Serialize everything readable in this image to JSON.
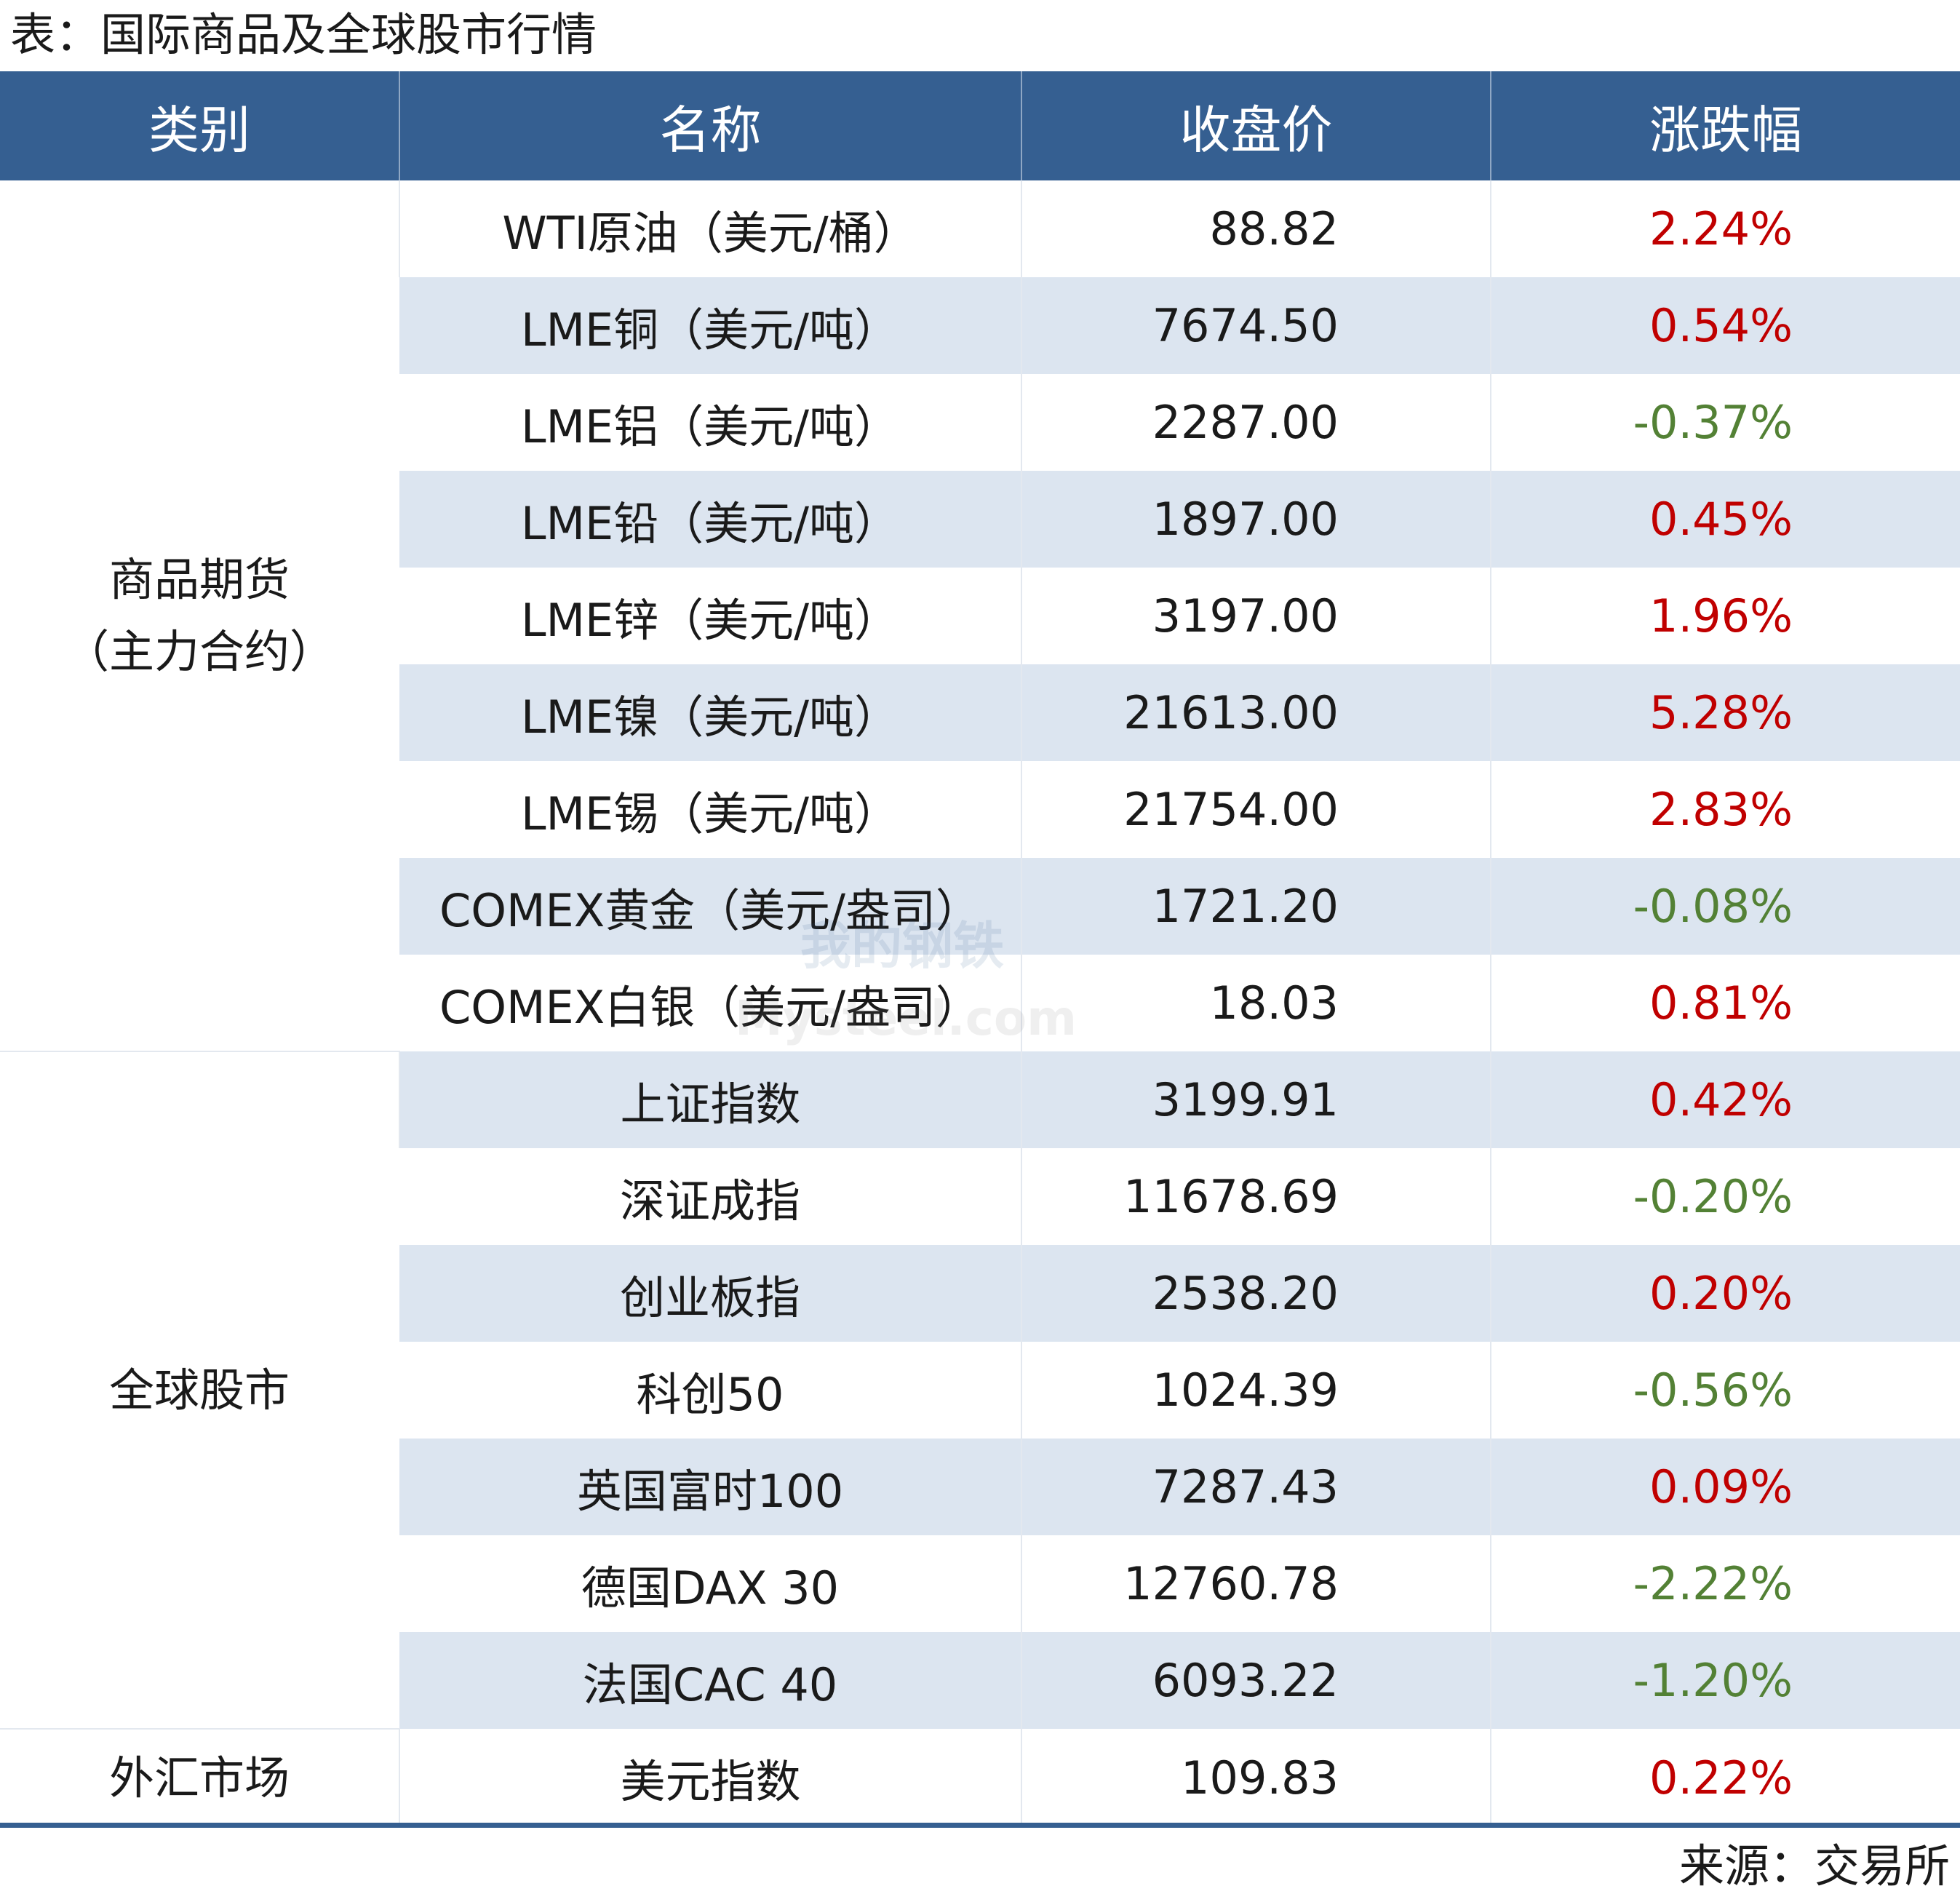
{
  "title": "表：国际商品及全球股市行情",
  "headers": {
    "category": "类别",
    "name": "名称",
    "close": "收盘价",
    "change": "涨跌幅"
  },
  "categories": {
    "commodities_line1": "商品期货",
    "commodities_line2": "（主力合约）",
    "stocks": "全球股市",
    "fx": "外汇市场"
  },
  "rows": [
    {
      "name": "WTI原油（美元/桶）",
      "close": "88.82",
      "change": "2.24%",
      "direction": "up"
    },
    {
      "name": "LME铜（美元/吨）",
      "close": "7674.50",
      "change": "0.54%",
      "direction": "up"
    },
    {
      "name": "LME铝（美元/吨）",
      "close": "2287.00",
      "change": "-0.37%",
      "direction": "down"
    },
    {
      "name": "LME铅（美元/吨）",
      "close": "1897.00",
      "change": "0.45%",
      "direction": "up"
    },
    {
      "name": "LME锌（美元/吨）",
      "close": "3197.00",
      "change": "1.96%",
      "direction": "up"
    },
    {
      "name": "LME镍（美元/吨）",
      "close": "21613.00",
      "change": "5.28%",
      "direction": "up"
    },
    {
      "name": "LME锡（美元/吨）",
      "close": "21754.00",
      "change": "2.83%",
      "direction": "up"
    },
    {
      "name": "COMEX黄金（美元/盎司）",
      "close": "1721.20",
      "change": "-0.08%",
      "direction": "down"
    },
    {
      "name": "COMEX白银（美元/盎司）",
      "close": "18.03",
      "change": "0.81%",
      "direction": "up"
    },
    {
      "name": "上证指数",
      "close": "3199.91",
      "change": "0.42%",
      "direction": "up"
    },
    {
      "name": "深证成指",
      "close": "11678.69",
      "change": "-0.20%",
      "direction": "down"
    },
    {
      "name": "创业板指",
      "close": "2538.20",
      "change": "0.20%",
      "direction": "up"
    },
    {
      "name": "科创50",
      "close": "1024.39",
      "change": "-0.56%",
      "direction": "down"
    },
    {
      "name": "英国富时100",
      "close": "7287.43",
      "change": "0.09%",
      "direction": "up"
    },
    {
      "name": "德国DAX 30",
      "close": "12760.78",
      "change": "-2.22%",
      "direction": "down"
    },
    {
      "name": "法国CAC 40",
      "close": "6093.22",
      "change": "-1.20%",
      "direction": "down"
    },
    {
      "name": "美元指数",
      "close": "109.83",
      "change": "0.22%",
      "direction": "up"
    }
  ],
  "colors": {
    "header_bg": "#355f91",
    "row_shade": "#dce5f0",
    "up": "#c00000",
    "down": "#538135"
  },
  "watermark": {
    "top": "我的钢铁",
    "bottom": "Mysteel.com"
  },
  "source": "来源：交易所"
}
